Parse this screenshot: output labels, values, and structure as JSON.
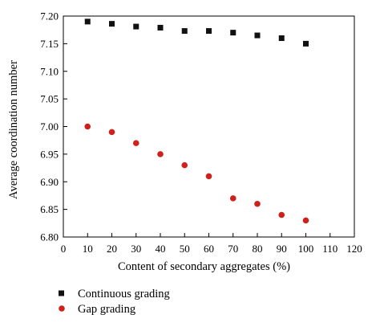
{
  "chart_data": {
    "type": "scatter",
    "title": "",
    "xlabel": "Content of secondary aggregates (%)",
    "ylabel": "Average coordination number",
    "xlim": [
      0,
      120
    ],
    "ylim": [
      6.8,
      7.2
    ],
    "xticks": [
      "0",
      "10",
      "20",
      "30",
      "40",
      "50",
      "60",
      "70",
      "80",
      "90",
      "100",
      "110",
      "120"
    ],
    "yticks": [
      "6.80",
      "6.85",
      "6.90",
      "6.95",
      "7.00",
      "7.05",
      "7.10",
      "7.15",
      "7.20"
    ],
    "grid": false,
    "legend_position": "bottom-left, below plot",
    "series": [
      {
        "name": "Continuous grading",
        "marker": "square",
        "color": "#111111",
        "x": [
          10,
          20,
          30,
          40,
          50,
          60,
          70,
          80,
          90,
          100
        ],
        "y": [
          7.19,
          7.186,
          7.181,
          7.179,
          7.173,
          7.173,
          7.17,
          7.165,
          7.16,
          7.15
        ]
      },
      {
        "name": "Gap grading",
        "marker": "circle",
        "color": "#d0201a",
        "x": [
          10,
          20,
          30,
          40,
          50,
          60,
          70,
          80,
          90,
          100
        ],
        "y": [
          7.0,
          6.99,
          6.97,
          6.95,
          6.93,
          6.91,
          6.87,
          6.86,
          6.84,
          6.83
        ]
      }
    ]
  }
}
